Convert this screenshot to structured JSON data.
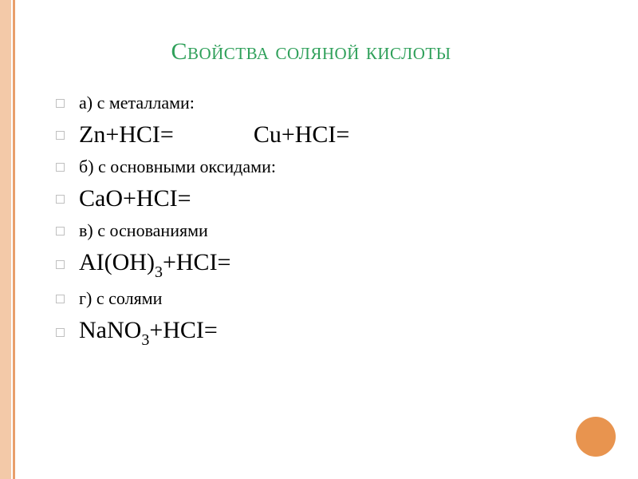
{
  "title": "Свойства соляной кислоты",
  "title_color": "#2fa05a",
  "title_fontsize": 30,
  "border_outer_color": "#f3c9a8",
  "border_inner_color": "#e99f6b",
  "bullet_border_color": "#c0c0c0",
  "circle_color": "#e8944f",
  "label_fontsize": 22,
  "formula_fontsize": 30,
  "lines": {
    "a_label": "а) с металлами:",
    "a_formula_1_left": "Zn+HCI=",
    "a_formula_1_right": "Cu+HCI=",
    "b_label": "б) с основными оксидами:",
    "b_formula": "CaO+HCI=",
    "v_label": "в) с основаниями",
    "v_formula_pre": "AI(OH)",
    "v_formula_sub": "3",
    "v_formula_post": "+HCI=",
    "g_label": "г) с солями",
    "g_formula_pre": "NaNO",
    "g_formula_sub": "3",
    "g_formula_post": "+HCI="
  }
}
